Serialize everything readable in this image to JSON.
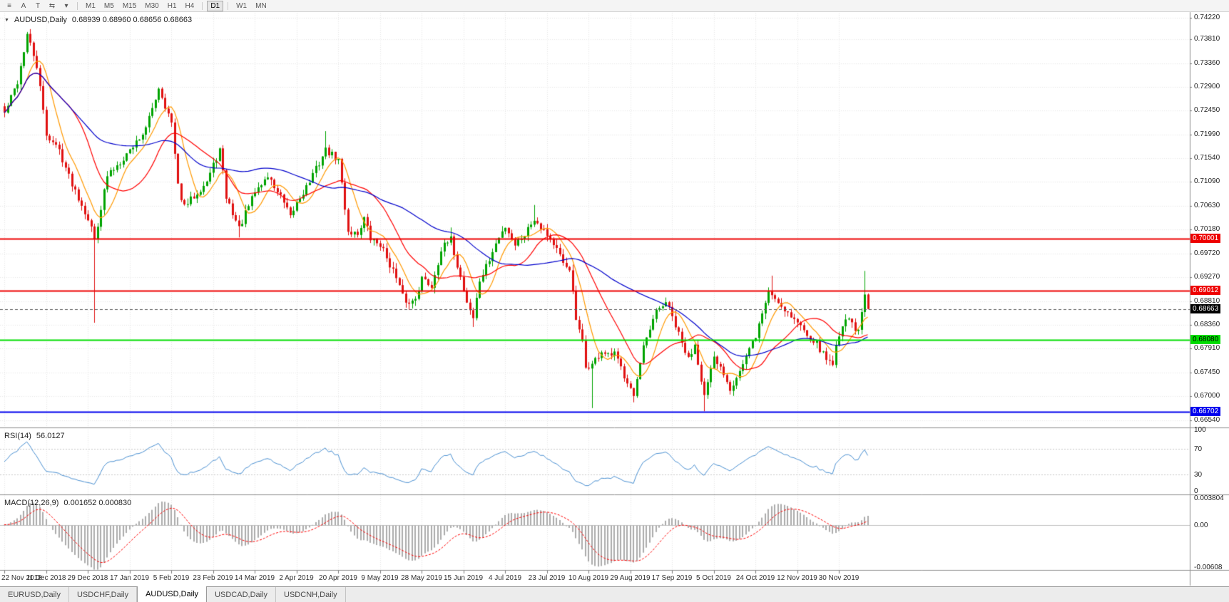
{
  "toolbar": {
    "icons": [
      {
        "name": "menu-icon",
        "glyph": "≡"
      },
      {
        "name": "cursor-tool-icon",
        "glyph": "A"
      },
      {
        "name": "text-tool-icon",
        "glyph": "T"
      },
      {
        "name": "chart-shift-icon",
        "glyph": "⇆"
      },
      {
        "name": "dropdown-caret-icon",
        "glyph": "▾"
      }
    ],
    "timeframes": [
      "M1",
      "M5",
      "M15",
      "M30",
      "H1",
      "H4",
      "D1",
      "W1",
      "MN"
    ],
    "active_timeframe": "D1"
  },
  "main_chart": {
    "menu_icon": "▼",
    "symbol_label": "AUDUSD,Daily",
    "ohlc": "0.68939 0.68960 0.68656 0.68663",
    "shift_marker": "▼",
    "scale": {
      "top": 0.7432,
      "bottom": 0.664
    },
    "price_ticks": [
      "0.74220",
      "0.73810",
      "0.73360",
      "0.72900",
      "0.72450",
      "0.71990",
      "0.71540",
      "0.71090",
      "0.70630",
      "0.70180",
      "0.69720",
      "0.69270",
      "0.68810",
      "0.68360",
      "0.67910",
      "0.67450",
      "0.67000",
      "0.66540"
    ],
    "hlines": [
      {
        "value": 0.70001,
        "label": "0.70001",
        "color": "#ee0000",
        "badge_fg": "#ffffff"
      },
      {
        "value": 0.69012,
        "label": "0.69012",
        "color": "#ee0000",
        "badge_fg": "#ffffff"
      },
      {
        "value": 0.6808,
        "label": "0.68080",
        "color": "#00dd00",
        "badge_fg": "#000000"
      },
      {
        "value": 0.66702,
        "label": "0.66702",
        "color": "#0000ee",
        "badge_fg": "#ffffff"
      }
    ],
    "last_price": {
      "value": 0.68663,
      "label": "0.68663",
      "color": "#000000",
      "badge_fg": "#ffffff"
    }
  },
  "rsi_panel": {
    "name": "RSI(14)",
    "value": "56.0127",
    "ticks": [
      {
        "v": 100,
        "label": "100"
      },
      {
        "v": 70,
        "label": "70"
      },
      {
        "v": 30,
        "label": "30"
      },
      {
        "v": 0,
        "label": "0"
      }
    ],
    "levels": [
      70,
      30
    ]
  },
  "macd_panel": {
    "name": "MACD(12,26,9)",
    "values": "0.001652 0.000830",
    "range": {
      "max": 0.0041,
      "min": -0.0064
    },
    "ticks": [
      {
        "v": 0.003804,
        "label": "0.003804"
      },
      {
        "v": 0,
        "label": "0.00"
      },
      {
        "v": -0.00608,
        "label": "-0.00608"
      }
    ]
  },
  "date_axis": [
    "22 Nov 2018",
    "11 Dec 2018",
    "29 Dec 2018",
    "17 Jan 2019",
    "5 Feb 2019",
    "23 Feb 2019",
    "14 Mar 2019",
    "2 Apr 2019",
    "20 Apr 2019",
    "9 May 2019",
    "28 May 2019",
    "15 Jun 2019",
    "4 Jul 2019",
    "23 Jul 2019",
    "10 Aug 2019",
    "29 Aug 2019",
    "17 Sep 2019",
    "5 Oct 2019",
    "24 Oct 2019",
    "12 Nov 2019",
    "30 Nov 2019"
  ],
  "tab_bar": {
    "tabs": [
      {
        "label": "EURUSD,Daily",
        "active": false
      },
      {
        "label": "USDCHF,Daily",
        "active": false
      },
      {
        "label": "AUDUSD,Daily",
        "active": true
      },
      {
        "label": "USDCAD,Daily",
        "active": false
      },
      {
        "label": "USDCNH,Daily",
        "active": false
      }
    ]
  },
  "colors": {
    "candle_up": "#00a300",
    "candle_down": "#e01010",
    "ma_fast": "#ff9900",
    "ma_mid": "#ff0000",
    "ma_slow": "#0000cc",
    "rsi_line": "#4a90d2",
    "macd_histogram": "#ababab",
    "macd_signal": "#ff0000",
    "grid": "#e7e7e7"
  },
  "chart_data": {
    "type": "candlestick",
    "symbol": "AUDUSD",
    "timeframe": "Daily",
    "title": "AUDUSD,Daily",
    "candle_count": 270,
    "tick_interval": 13,
    "visible_range": {
      "start": "22 Nov 2018",
      "end": "13 Dec 2019"
    },
    "ylim": [
      0.664,
      0.7432
    ],
    "last_candle": {
      "open": 0.68939,
      "high": 0.6896,
      "low": 0.68656,
      "close": 0.68663
    },
    "last_close": 0.68663,
    "price_anchors": [
      [
        0,
        0.724
      ],
      [
        4,
        0.73
      ],
      [
        7,
        0.739
      ],
      [
        10,
        0.733
      ],
      [
        13,
        0.72
      ],
      [
        17,
        0.717
      ],
      [
        20,
        0.712
      ],
      [
        26,
        0.704
      ],
      [
        28,
        0.7
      ],
      [
        32,
        0.712
      ],
      [
        39,
        0.717
      ],
      [
        44,
        0.721
      ],
      [
        48,
        0.729
      ],
      [
        52,
        0.722
      ],
      [
        54,
        0.71
      ],
      [
        56,
        0.706
      ],
      [
        60,
        0.709
      ],
      [
        63,
        0.711
      ],
      [
        67,
        0.717
      ],
      [
        69,
        0.708
      ],
      [
        73,
        0.702
      ],
      [
        78,
        0.709
      ],
      [
        82,
        0.712
      ],
      [
        86,
        0.708
      ],
      [
        89,
        0.704
      ],
      [
        91,
        0.707
      ],
      [
        95,
        0.711
      ],
      [
        100,
        0.717
      ],
      [
        104,
        0.715
      ],
      [
        107,
        0.7015
      ],
      [
        110,
        0.701
      ],
      [
        112,
        0.704
      ],
      [
        114,
        0.7
      ],
      [
        117,
        0.699
      ],
      [
        121,
        0.694
      ],
      [
        124,
        0.689
      ],
      [
        126,
        0.6875
      ],
      [
        128,
        0.689
      ],
      [
        130,
        0.6925
      ],
      [
        133,
        0.691
      ],
      [
        136,
        0.698
      ],
      [
        139,
        0.6998
      ],
      [
        141,
        0.695
      ],
      [
        144,
        0.688
      ],
      [
        146,
        0.685
      ],
      [
        148,
        0.692
      ],
      [
        151,
        0.696
      ],
      [
        153,
        0.699
      ],
      [
        156,
        0.7025
      ],
      [
        159,
        0.699
      ],
      [
        162,
        0.701
      ],
      [
        165,
        0.704
      ],
      [
        169,
        0.701
      ],
      [
        172,
        0.698
      ],
      [
        174,
        0.695
      ],
      [
        176,
        0.6945
      ],
      [
        178,
        0.6845
      ],
      [
        180,
        0.68
      ],
      [
        181,
        0.6755
      ],
      [
        183,
        0.676
      ],
      [
        186,
        0.6785
      ],
      [
        188,
        0.6775
      ],
      [
        190,
        0.678
      ],
      [
        193,
        0.674
      ],
      [
        195,
        0.672
      ],
      [
        196,
        0.67
      ],
      [
        199,
        0.679
      ],
      [
        203,
        0.686
      ],
      [
        206,
        0.688
      ],
      [
        208,
        0.685
      ],
      [
        211,
        0.68
      ],
      [
        213,
        0.677
      ],
      [
        215,
        0.68
      ],
      [
        218,
        0.67
      ],
      [
        221,
        0.677
      ],
      [
        224,
        0.6745
      ],
      [
        226,
        0.6715
      ],
      [
        230,
        0.676
      ],
      [
        234,
        0.6815
      ],
      [
        238,
        0.69
      ],
      [
        241,
        0.688
      ],
      [
        244,
        0.686
      ],
      [
        247,
        0.684
      ],
      [
        250,
        0.682
      ],
      [
        253,
        0.68
      ],
      [
        256,
        0.677
      ],
      [
        258,
        0.6765
      ],
      [
        260,
        0.682
      ],
      [
        262,
        0.685
      ],
      [
        264,
        0.684
      ],
      [
        266,
        0.682
      ],
      [
        268,
        0.68939
      ],
      [
        269,
        0.68663
      ]
    ],
    "spikes": [
      {
        "day": 7,
        "high": 0.7394
      },
      {
        "day": 28,
        "low": 0.684
      },
      {
        "day": 73,
        "low": 0.7003
      },
      {
        "day": 100,
        "high": 0.7206
      },
      {
        "day": 126,
        "low": 0.6865
      },
      {
        "day": 139,
        "high": 0.7022
      },
      {
        "day": 146,
        "low": 0.6832
      },
      {
        "day": 165,
        "high": 0.7065
      },
      {
        "day": 183,
        "low": 0.6677
      },
      {
        "day": 196,
        "low": 0.6688
      },
      {
        "day": 218,
        "low": 0.6671
      },
      {
        "day": 239,
        "high": 0.693
      },
      {
        "day": 268,
        "high": 0.6939
      }
    ],
    "noise_seed": 42,
    "noise_amp": 0.0014,
    "wick_amp": 0.0011,
    "moving_averages": [
      {
        "name": "ma-fast",
        "period": 8,
        "color": "#ff9900"
      },
      {
        "name": "ma-mid",
        "period": 20,
        "color": "#ff0000"
      },
      {
        "name": "ma-slow",
        "period": 50,
        "color": "#0000cc"
      }
    ],
    "indicators": {
      "rsi": {
        "period": 14,
        "current": 56.0127
      },
      "macd": {
        "fast": 12,
        "slow": 26,
        "signal": 9,
        "current_main": 0.001652,
        "current_signal": 0.00083
      }
    }
  }
}
